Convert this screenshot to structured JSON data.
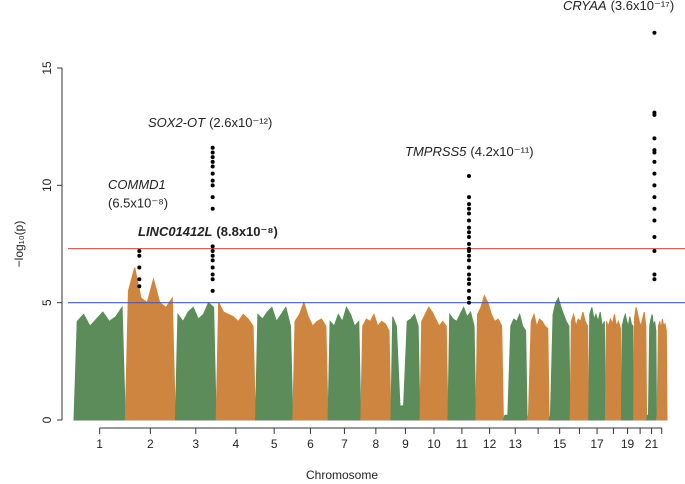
{
  "chart_data": {
    "type": "manhattan",
    "xlabel": "Chromosome",
    "ylabel": "−log₁₀(p)",
    "ylim": [
      0,
      17
    ],
    "yticks": [
      0,
      5,
      10,
      15
    ],
    "hlines": [
      {
        "value": 7.3,
        "color": "#e8413c"
      },
      {
        "value": 5,
        "color": "#3b5bdb"
      }
    ],
    "colors": [
      "#5b8c5a",
      "#cd8540"
    ],
    "hit_color": "#000000",
    "chromosomes": [
      {
        "label": "1",
        "length": 249,
        "values": [
          4.2,
          4.5,
          4.0,
          4.3,
          4.6,
          4.2,
          4.4,
          4.8
        ]
      },
      {
        "label": "2",
        "length": 243,
        "values": [
          5.5,
          6.5,
          5.2,
          5.0,
          6.0,
          5.0,
          4.8,
          5.2
        ]
      },
      {
        "label": "3",
        "length": 198,
        "values": [
          4.5,
          4.2,
          4.6,
          4.8,
          4.3,
          4.5,
          5.0,
          4.8
        ]
      },
      {
        "label": "4",
        "length": 191,
        "values": [
          5.0,
          4.6,
          4.5,
          4.4,
          4.2,
          4.5,
          4.3,
          4.0
        ]
      },
      {
        "label": "5",
        "length": 181,
        "values": [
          4.5,
          4.3,
          4.6,
          4.8,
          4.2,
          4.5,
          4.8,
          4.0
        ]
      },
      {
        "label": "6",
        "length": 171,
        "values": [
          4.2,
          4.5,
          5.0,
          4.4,
          4.0,
          4.2,
          4.3,
          4.0
        ]
      },
      {
        "label": "7",
        "length": 159,
        "values": [
          4.2,
          4.0,
          4.5,
          4.2,
          4.8,
          4.5,
          4.0,
          4.2
        ]
      },
      {
        "label": "8",
        "length": 146,
        "values": [
          4.0,
          4.3,
          4.2,
          4.5,
          4.0,
          4.2,
          4.1,
          3.8
        ]
      },
      {
        "label": "9",
        "length": 141,
        "values": [
          4.4,
          4.0,
          0.6,
          0.6,
          4.2,
          4.3,
          4.5,
          4.0
        ]
      },
      {
        "label": "10",
        "length": 136,
        "values": [
          4.2,
          4.5,
          4.8,
          4.6,
          4.3,
          4.0,
          4.2,
          4.0
        ]
      },
      {
        "label": "11",
        "length": 135,
        "values": [
          4.5,
          4.3,
          4.2,
          4.5,
          4.8,
          4.4,
          4.6,
          4.0
        ]
      },
      {
        "label": "12",
        "length": 134,
        "values": [
          4.5,
          4.8,
          5.3,
          5.0,
          4.5,
          4.2,
          4.3,
          4.0
        ]
      },
      {
        "label": "13",
        "length": 115,
        "values": [
          0.2,
          0.2,
          4.0,
          4.3,
          4.2,
          4.5,
          4.0,
          3.8
        ]
      },
      {
        "label": null,
        "length": 107,
        "values": [
          0.2,
          4.2,
          4.5,
          4.0,
          4.3,
          4.2,
          4.0,
          3.9
        ]
      },
      {
        "label": "15",
        "length": 102,
        "values": [
          0.2,
          4.5,
          5.0,
          5.2,
          4.8,
          4.5,
          4.2,
          4.0
        ]
      },
      {
        "label": null,
        "length": 90,
        "values": [
          4.2,
          4.5,
          4.0,
          4.3,
          4.2,
          4.6,
          4.2,
          4.0
        ]
      },
      {
        "label": "17",
        "length": 81,
        "values": [
          4.5,
          4.8,
          4.3,
          4.5,
          4.2,
          4.6,
          4.0,
          4.2
        ]
      },
      {
        "label": null,
        "length": 78,
        "values": [
          4.2,
          4.0,
          4.3,
          4.1,
          4.5,
          4.0,
          4.2,
          3.9
        ]
      },
      {
        "label": "19",
        "length": 59,
        "values": [
          4.0,
          4.3,
          4.5,
          4.2,
          4.0,
          4.4,
          4.1,
          4.0
        ]
      },
      {
        "label": null,
        "length": 63,
        "values": [
          4.3,
          4.8,
          4.5,
          4.2,
          4.0,
          4.3,
          4.6,
          4.0
        ]
      },
      {
        "label": "21",
        "length": 48,
        "values": [
          0.2,
          0.2,
          4.0,
          4.3,
          4.5,
          4.0,
          4.2,
          3.8
        ]
      },
      {
        "label": null,
        "length": 51,
        "values": [
          0.2,
          4.0,
          4.2,
          3.9,
          4.3,
          4.0,
          4.1,
          3.8
        ]
      }
    ],
    "hits": [
      {
        "chrom": 1,
        "pos": 68,
        "values": [
          7.2,
          7.0,
          6.5,
          6.0,
          5.7
        ]
      },
      {
        "chrom": 2,
        "pos": 181,
        "values": [
          11.6,
          11.4,
          11.2,
          11.0,
          10.8,
          10.5,
          10.2,
          10.0,
          9.5,
          9.0,
          7.4,
          7.2,
          7.0,
          6.8,
          6.5,
          6.2,
          6.0,
          5.5
        ]
      },
      {
        "chrom": 10,
        "pos": 102,
        "values": [
          10.4,
          9.5,
          9.2,
          9.0,
          8.8,
          8.5,
          8.2,
          8.0,
          7.8,
          7.5,
          7.3,
          7.2,
          7.0,
          6.8,
          6.5,
          6.2,
          6.0,
          5.8,
          5.5,
          5.2,
          5.0
        ]
      },
      {
        "chrom": 20,
        "pos": 38,
        "values": [
          16.5,
          13.1,
          13.0,
          12.0,
          11.5,
          11.4,
          11.0,
          10.5,
          10.0,
          9.5,
          9.0,
          8.5,
          7.8,
          7.2,
          6.2,
          6.0
        ]
      }
    ],
    "annotations": [
      {
        "gene": "COMMD1",
        "p": "(6.5x10⁻⁸)"
      },
      {
        "gene": "SOX2-OT",
        "p": "(2.6x10⁻¹²)"
      },
      {
        "gene": "LINC01412L",
        "p": "(8.8x10⁻⁸)"
      },
      {
        "gene": "TMPRSS5",
        "p": "(4.2x10⁻¹¹)"
      },
      {
        "gene": "CRYAA",
        "p": "(3.6x10⁻¹⁷)"
      }
    ]
  }
}
